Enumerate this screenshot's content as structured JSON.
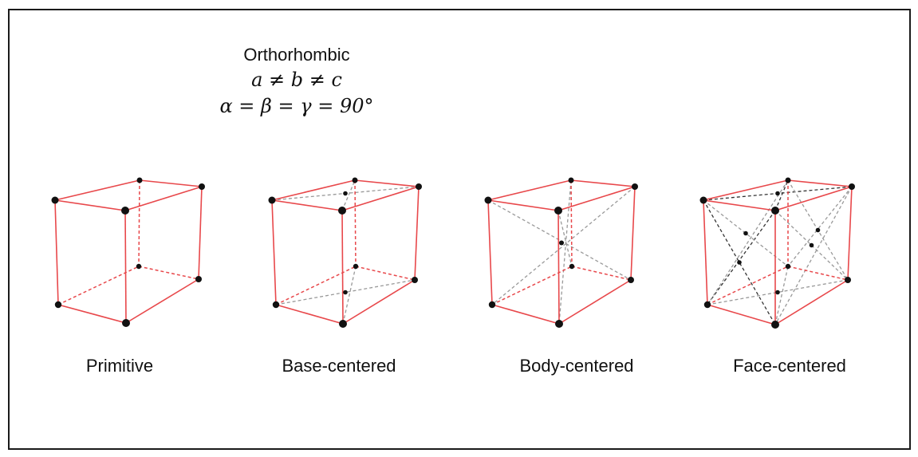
{
  "diagram": {
    "title": "Orthorhombic",
    "condition_edges": "a ≠ b ≠ c",
    "condition_angles": "α = β = γ = 90°",
    "lattices": [
      {
        "label": "Primitive"
      },
      {
        "label": "Base-centered"
      },
      {
        "label": "Body-centered"
      },
      {
        "label": "Face-centered"
      }
    ],
    "colors": {
      "edge": "#e8484b",
      "hidden_edge": "#e8484b",
      "centering_line": "#999999",
      "centering_line_dark": "#333333",
      "atom": "#111111"
    }
  }
}
